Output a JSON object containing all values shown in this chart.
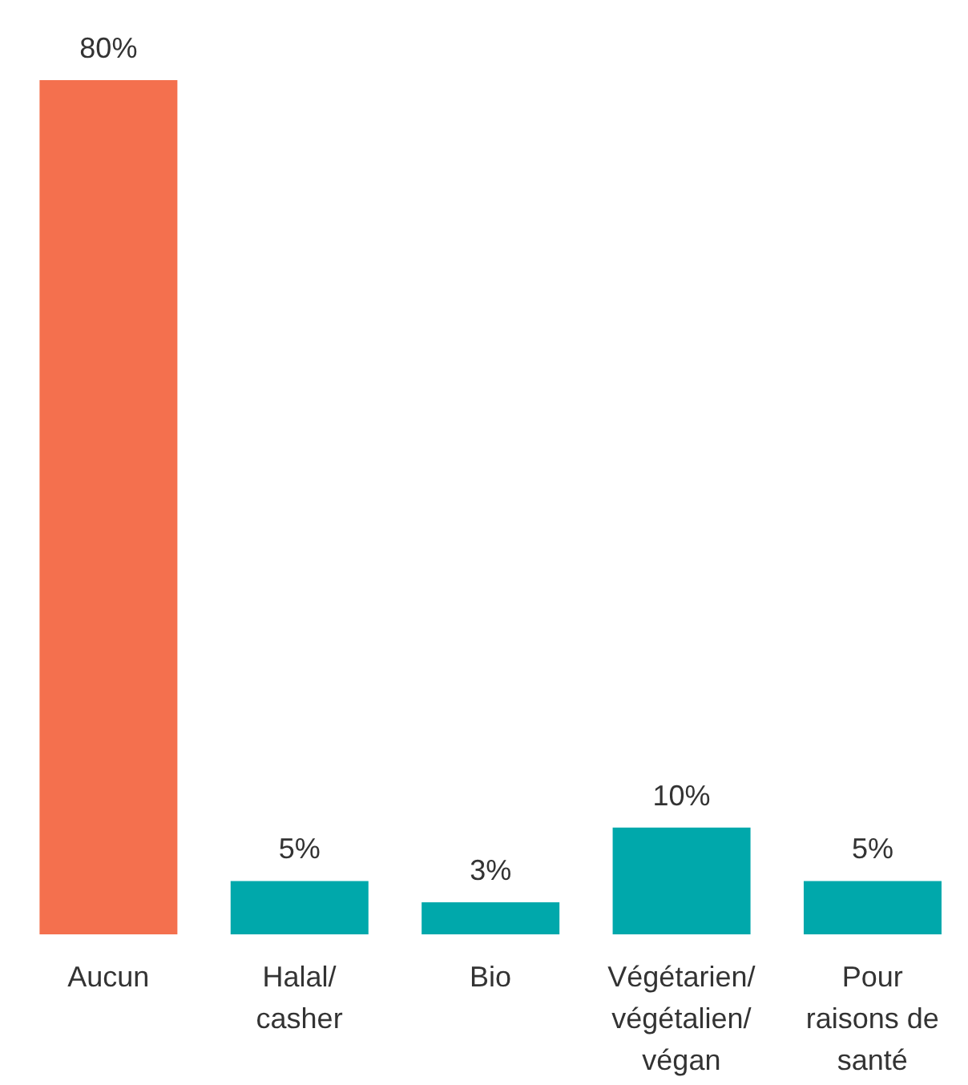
{
  "chart_data": {
    "type": "bar",
    "categories": [
      "Aucun",
      "Halal/ casher",
      "Bio",
      "Végétarien/ végétalien/ végan",
      "Pour raisons de santé"
    ],
    "values": [
      80,
      5,
      3,
      10,
      5
    ],
    "value_labels": [
      "80%",
      "5%",
      "3%",
      "10%",
      "5%"
    ],
    "colors": [
      "#f4704e",
      "#00a8ab",
      "#00a8ab",
      "#00a8ab",
      "#00a8ab"
    ],
    "grid": false,
    "legend": false
  }
}
